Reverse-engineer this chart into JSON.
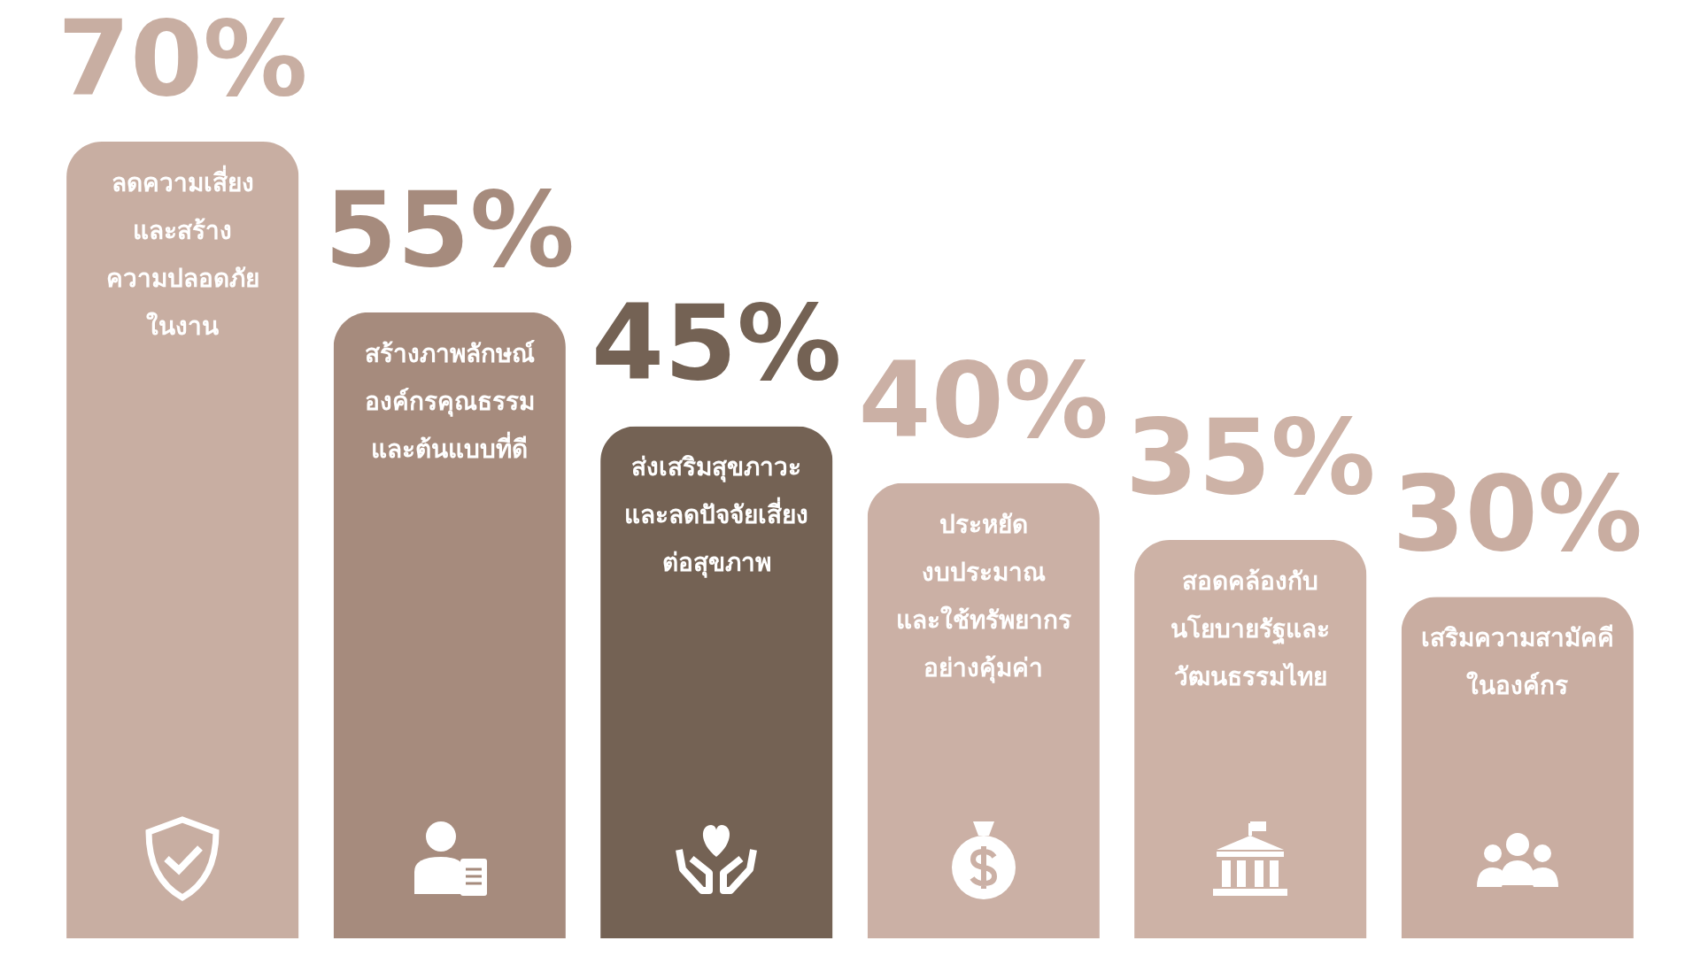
{
  "chart_data": {
    "type": "bar",
    "categories": [
      "ลดความเสี่ยง\nและสร้าง\nความปลอดภัย\nในงาน",
      "สร้างภาพลักษณ์\nองค์กรคุณธรรม\nและต้นแบบที่ดี",
      "ส่งเสริมสุขภาวะ\nและลดปัจจัยเสี่ยง\nต่อสุขภาพ",
      "ประหยัด\nงบประมาณ\nและใช้ทรัพยากร\nอย่างคุ้มค่า",
      "สอดคล้องกับ\nนโยบายรัฐและ\nวัฒนธรรมไทย",
      "เสริมความสามัคคี\nในองค์กร"
    ],
    "values": [
      70,
      55,
      45,
      40,
      35,
      30
    ],
    "value_labels": [
      "70%",
      "55%",
      "45%",
      "40%",
      "35%",
      "30%"
    ],
    "colors": [
      "#c8aea2",
      "#a68b7d",
      "#746254",
      "#cbb0a5",
      "#cdb2a6",
      "#c9ada1"
    ]
  }
}
